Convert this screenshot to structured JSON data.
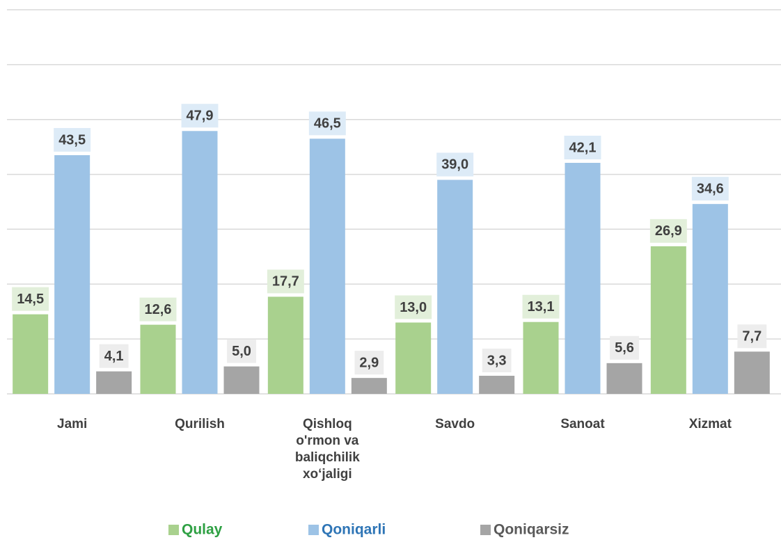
{
  "chart_data": {
    "type": "bar",
    "categories": [
      "Jami",
      "Qurilish",
      "Qishloq o'rmon va baliqchilik xo‘jaligi",
      "Savdo",
      "Sanoat",
      "Xizmat"
    ],
    "series": [
      {
        "name": "Qulay",
        "color": "#a9d18e",
        "label_color": "#2ea043",
        "box_color": "#e2efda",
        "values": [
          14.5,
          12.6,
          17.7,
          13.0,
          13.1,
          26.9
        ],
        "value_labels": [
          "14,5",
          "12,6",
          "17,7",
          "13,0",
          "13,1",
          "26,9"
        ]
      },
      {
        "name": "Qoniqarli",
        "color": "#9dc3e6",
        "label_color": "#2e75b6",
        "box_color": "#ddebf7",
        "values": [
          43.5,
          47.9,
          46.5,
          39.0,
          42.1,
          34.6
        ],
        "value_labels": [
          "43,5",
          "47,9",
          "46,5",
          "39,0",
          "42,1",
          "34,6"
        ]
      },
      {
        "name": "Qoniqarsiz",
        "color": "#a5a5a5",
        "label_color": "#595959",
        "box_color": "#ededed",
        "values": [
          4.1,
          5.0,
          2.9,
          3.3,
          5.6,
          7.7
        ],
        "value_labels": [
          "4,1",
          "5,0",
          "2,9",
          "3,3",
          "5,6",
          "7,7"
        ]
      }
    ],
    "ylim": [
      0,
      70
    ],
    "yticks": [
      0,
      10,
      20,
      30,
      40,
      50,
      60,
      70
    ],
    "grid": true,
    "legend": "bottom"
  }
}
